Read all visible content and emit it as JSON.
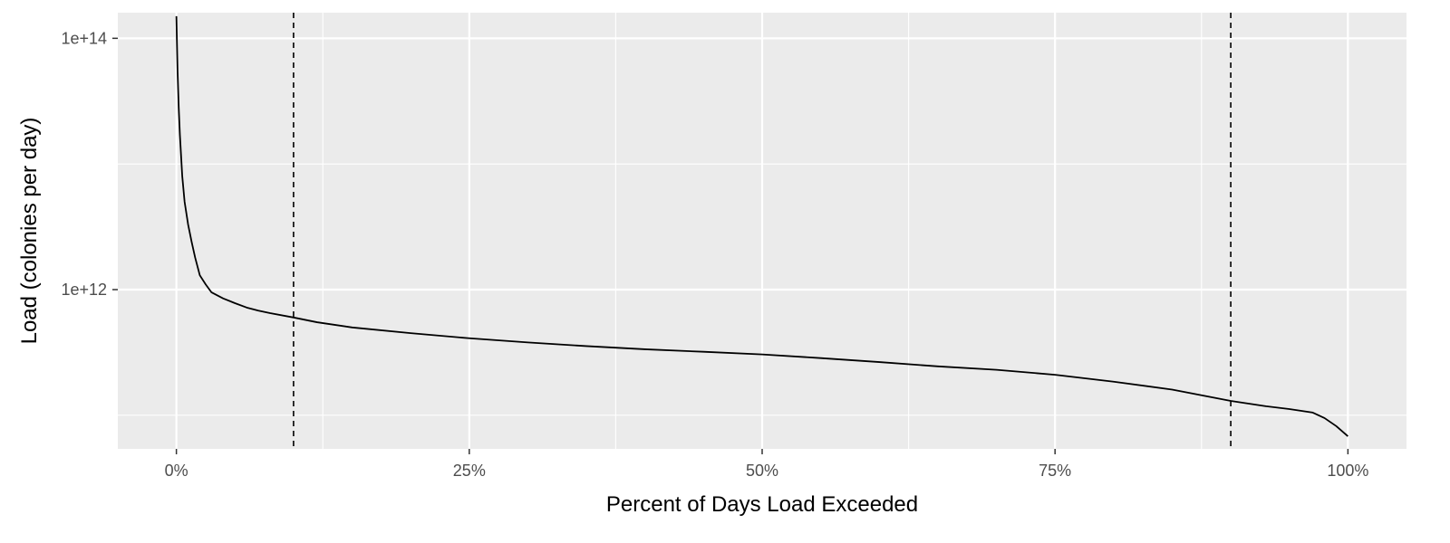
{
  "chart_data": {
    "type": "line",
    "title": "",
    "xlabel": "Percent of Days Load Exceeded",
    "ylabel": "Load (colonies per day)",
    "x_scale": "linear",
    "y_scale": "log10",
    "xlim": [
      -0.05,
      1.05
    ],
    "ylim": [
      54000000000.0,
      160000000000000.0
    ],
    "x_ticks": [
      {
        "value": 0,
        "label": "0%"
      },
      {
        "value": 0.25,
        "label": "25%"
      },
      {
        "value": 0.5,
        "label": "50%"
      },
      {
        "value": 0.75,
        "label": "75%"
      },
      {
        "value": 1,
        "label": "100%"
      }
    ],
    "y_ticks": [
      {
        "value": 100000000000000.0,
        "label": "1e+14"
      },
      {
        "value": 1000000000000.0,
        "label": "1e+12"
      }
    ],
    "y_minor_gridlines": [
      10000000000000.0,
      100000000000.0
    ],
    "grid": true,
    "panel_background": "#ebebeb",
    "grid_color": "#ffffff",
    "series": [
      {
        "color": "#000000",
        "x": [
          0,
          0.0005,
          0.001,
          0.002,
          0.003,
          0.005,
          0.007,
          0.01,
          0.013,
          0.016,
          0.02,
          0.025,
          0.03,
          0.04,
          0.05,
          0.06,
          0.07,
          0.08,
          0.1,
          0.12,
          0.15,
          0.2,
          0.25,
          0.3,
          0.35,
          0.4,
          0.45,
          0.5,
          0.55,
          0.6,
          0.65,
          0.7,
          0.75,
          0.8,
          0.85,
          0.9,
          0.93,
          0.95,
          0.97,
          0.98,
          0.99,
          1.0
        ],
        "y": [
          150000000000000.0,
          90000000000000.0,
          55000000000000.0,
          28000000000000.0,
          17000000000000.0,
          8000000000000.0,
          5000000000000.0,
          3300000000000.0,
          2400000000000.0,
          1800000000000.0,
          1300000000000.0,
          1100000000000.0,
          950000000000.0,
          850000000000.0,
          780000000000.0,
          720000000000.0,
          680000000000.0,
          650000000000.0,
          600000000000.0,
          550000000000.0,
          500000000000.0,
          450000000000.0,
          410000000000.0,
          380000000000.0,
          355000000000.0,
          335000000000.0,
          320000000000.0,
          305000000000.0,
          285000000000.0,
          265000000000.0,
          245000000000.0,
          230000000000.0,
          210000000000.0,
          185000000000.0,
          160000000000.0,
          130000000000.0,
          118000000000.0,
          112000000000.0,
          105000000000.0,
          95000000000.0,
          82000000000.0,
          68000000000.0
        ]
      }
    ],
    "vlines": [
      {
        "x": 0.1,
        "linetype": "dashed",
        "color": "#000000"
      },
      {
        "x": 0.9,
        "linetype": "dashed",
        "color": "#000000"
      }
    ]
  }
}
